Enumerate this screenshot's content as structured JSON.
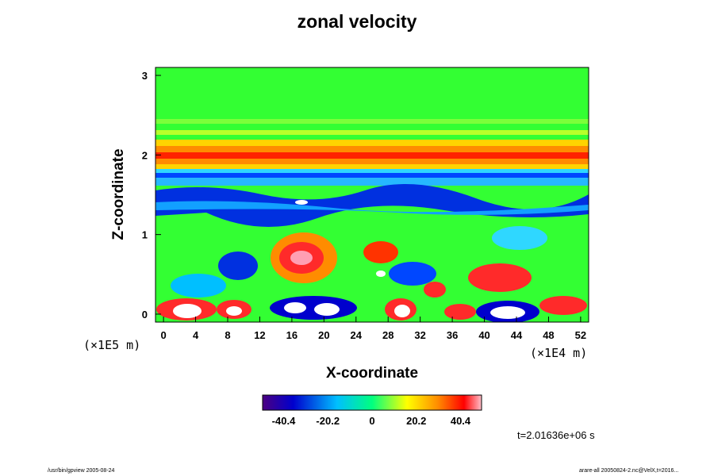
{
  "chart_data": {
    "type": "heatmap",
    "title": "zonal velocity",
    "xlabel": "X-coordinate",
    "ylabel": "Z-coordinate",
    "x_unit": "(×1E4 m)",
    "y_unit": "(×1E5 m)",
    "xlim": [
      -1,
      53
    ],
    "ylim": [
      -0.1,
      3.1
    ],
    "x_ticks": [
      "0",
      "4",
      "8",
      "12",
      "16",
      "20",
      "24",
      "28",
      "32",
      "36",
      "40",
      "44",
      "48",
      "52"
    ],
    "y_ticks": [
      "0",
      "1",
      "2",
      "3"
    ],
    "colorbar": {
      "range": [
        -50,
        50
      ],
      "ticks": [
        "-40.4",
        "-20.2",
        "0",
        "20.2",
        "40.4"
      ],
      "colors": [
        "#4b0082",
        "#0000cd",
        "#00bfff",
        "#00ff7f",
        "#ffff00",
        "#ff8c00",
        "#ff0000",
        "#ffc0cb"
      ]
    },
    "time_label": "t=2.01636e+06 s"
  },
  "footer": {
    "left": "/usr/bin/gpview 2005-08-24",
    "right": "arare-all 20050824-2.nc@VelX,t=2016..."
  }
}
